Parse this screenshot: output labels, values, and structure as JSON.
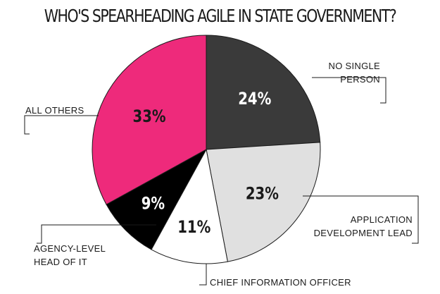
{
  "chart_data": {
    "type": "pie",
    "title": "WHO'S SPEARHEADING AGILE IN STATE GOVERNMENT?",
    "slices": [
      {
        "label_lines": [
          "NO SINGLE",
          "PERSON"
        ],
        "value": 24,
        "value_label": "24%",
        "color": "#3a3a3a",
        "label_color": "#ffffff"
      },
      {
        "label_lines": [
          "APPLICATION",
          "DEVELOPMENT LEAD"
        ],
        "value": 23,
        "value_label": "23%",
        "color": "#e0e0e0",
        "label_color": "#1a1a1a"
      },
      {
        "label_lines": [
          "CHIEF INFORMATION OFFICER"
        ],
        "value": 11,
        "value_label": "11%",
        "color": "#ffffff",
        "label_color": "#1a1a1a"
      },
      {
        "label_lines": [
          "AGENCY-LEVEL",
          "HEAD OF IT"
        ],
        "value": 9,
        "value_label": "9%",
        "color": "#000000",
        "label_color": "#ffffff"
      },
      {
        "label_lines": [
          "ALL OTHERS"
        ],
        "value": 33,
        "value_label": "33%",
        "color": "#ee2a7b",
        "label_color": "#1a1a1a"
      }
    ]
  }
}
